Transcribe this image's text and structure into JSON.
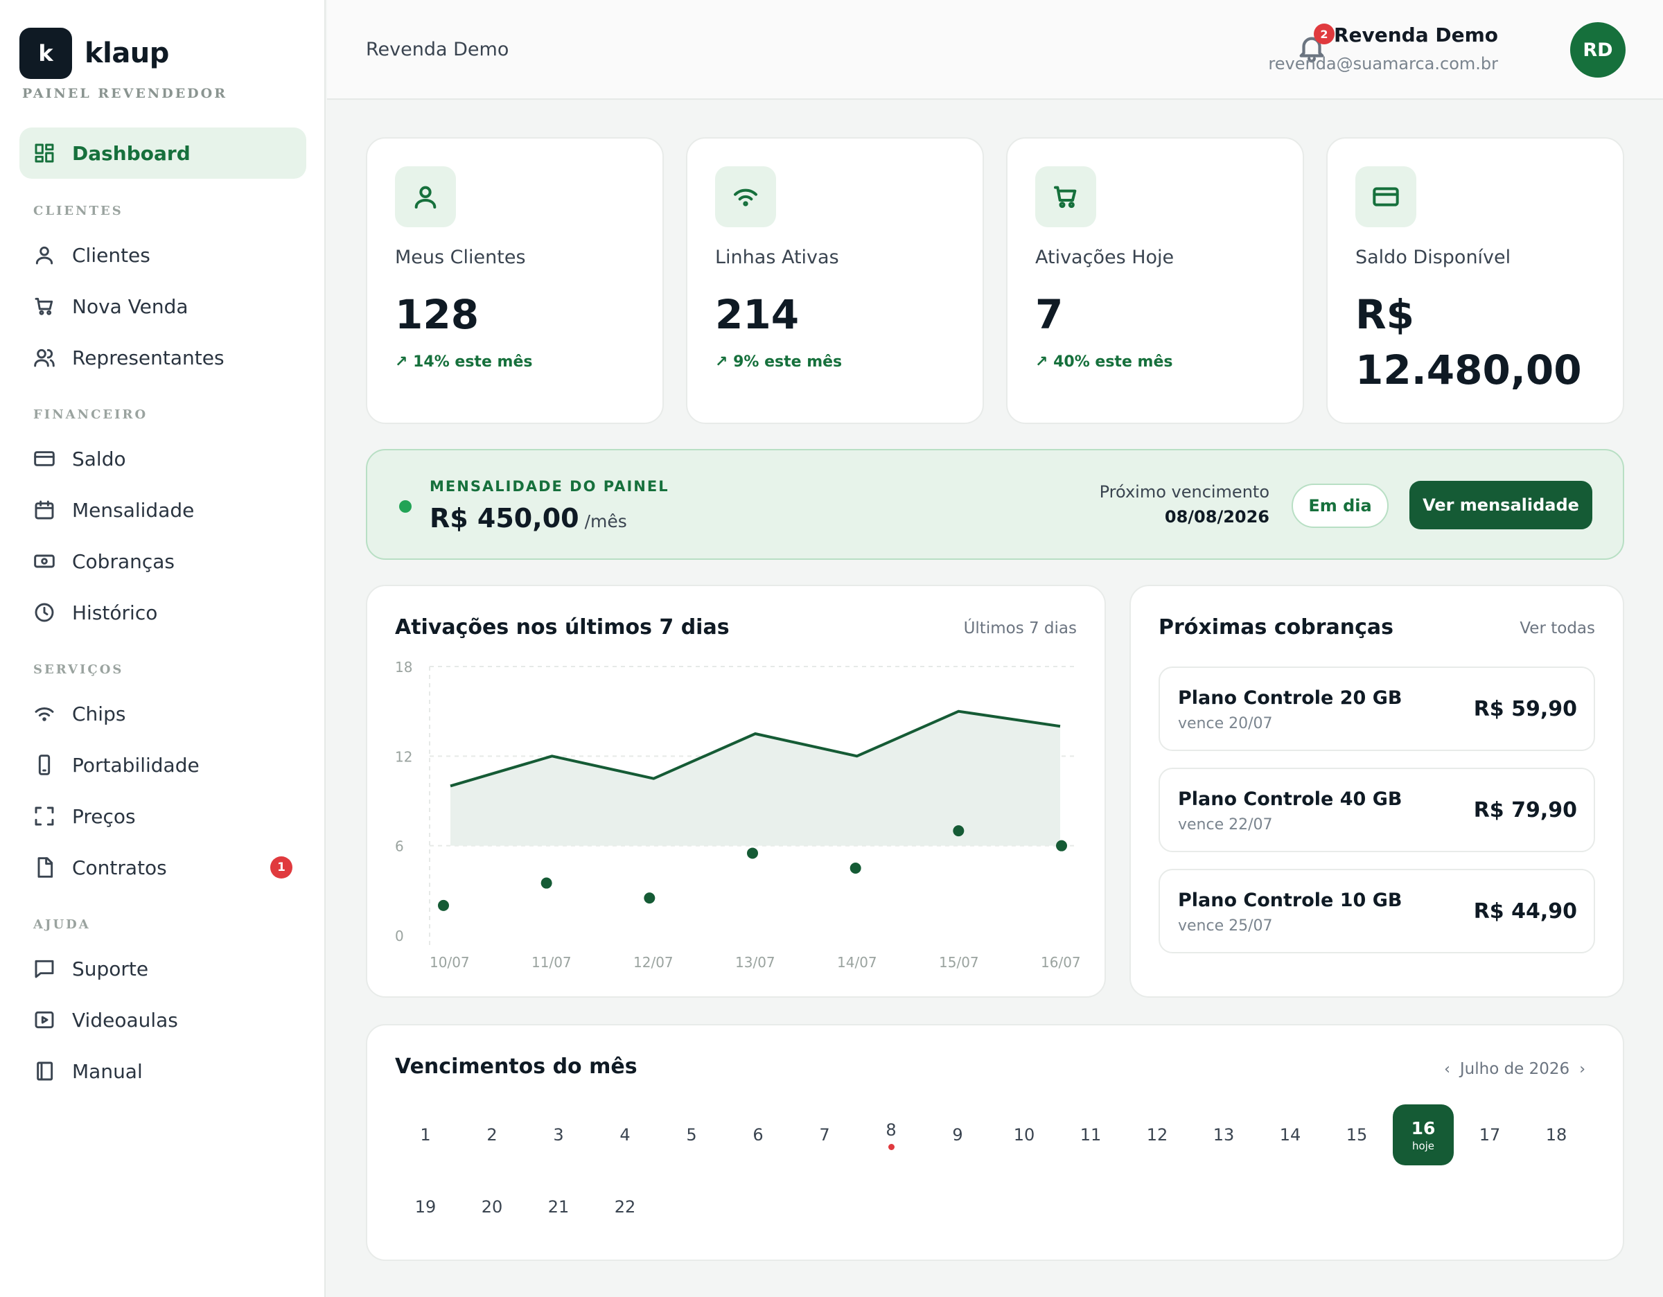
{
  "brand": {
    "logo_letter": "k",
    "name": "klaup",
    "subtitle": "PAINEL REVENDEDOR"
  },
  "sidebar": {
    "dashboard": "Dashboard",
    "sections": {
      "clientes": "CLIENTES",
      "financeiro": "FINANCEIRO",
      "servicos": "SERVIÇOS",
      "ajuda": "AJUDA"
    },
    "items": {
      "clientes": "Clientes",
      "nova_venda": "Nova Venda",
      "representantes": "Representantes",
      "saldo": "Saldo",
      "mensalidade": "Mensalidade",
      "cobrancas": "Cobranças",
      "historico": "Histórico",
      "chips": "Chips",
      "portabilidade": "Portabilidade",
      "precos": "Preços",
      "contratos": "Contratos",
      "contratos_badge": "1",
      "suporte": "Suporte",
      "videoaulas": "Videoaulas",
      "manual": "Manual"
    }
  },
  "topbar": {
    "title": "Revenda Demo",
    "notification_count": "2",
    "user_name": "Revenda Demo",
    "user_email": "revenda@suamarca.com.br",
    "avatar_initials": "RD"
  },
  "stats": [
    {
      "label": "Meus Clientes",
      "value": "128",
      "trend": "↗ 14% este mês",
      "icon": "user-icon"
    },
    {
      "label": "Linhas Ativas",
      "value": "214",
      "trend": "↗ 9% este mês",
      "icon": "signal-icon"
    },
    {
      "label": "Ativações Hoje",
      "value": "7",
      "trend": "↗ 40% este mês",
      "icon": "cart-icon"
    },
    {
      "label": "Saldo Disponível",
      "value": "R$ 12.480,00",
      "trend": "",
      "icon": "card-icon"
    }
  ],
  "mensalidade": {
    "label": "MENSALIDADE DO PAINEL",
    "price": "R$ 450,00",
    "per": "/mês",
    "next_label": "Próximo vencimento",
    "next_date": "08/08/2026",
    "status": "Em dia",
    "action": "Ver mensalidade"
  },
  "activations_chart": {
    "title": "Ativações nos últimos 7 dias",
    "range_label": "Últimos 7 dias"
  },
  "chart_data": {
    "type": "line",
    "title": "Ativações nos últimos 7 dias",
    "categories": [
      "10/07",
      "11/07",
      "12/07",
      "13/07",
      "14/07",
      "15/07",
      "16/07"
    ],
    "series": [
      {
        "values": [
          10,
          12,
          10.5,
          13.5,
          12,
          15,
          14
        ]
      },
      {
        "values": [
          2,
          3.5,
          2.5,
          5.5,
          4.5,
          7,
          6
        ]
      }
    ],
    "y_ticks": [
      "0",
      "6",
      "12",
      "18"
    ],
    "ylim": [
      0,
      18
    ],
    "grid": true,
    "colors": {
      "line": "#155b35",
      "area": "#e9f0ec",
      "points": "#155b35"
    }
  },
  "charges": {
    "title": "Próximas cobranças",
    "view_all": "Ver todas",
    "items": [
      {
        "name": "Plano Controle 20 GB",
        "due": "vence 20/07",
        "amount": "R$ 59,90"
      },
      {
        "name": "Plano Controle 40 GB",
        "due": "vence 22/07",
        "amount": "R$ 79,90"
      },
      {
        "name": "Plano Controle 10 GB",
        "due": "vence 25/07",
        "amount": "R$ 44,90"
      }
    ]
  },
  "calendar": {
    "title": "Vencimentos do mês",
    "month": "Julho de 2026",
    "prev": "‹",
    "next": "›",
    "days": [
      "1",
      "2",
      "3",
      "4",
      "5",
      "6",
      "7",
      "8",
      "9",
      "10",
      "11",
      "12",
      "13",
      "14",
      "15",
      "16",
      "17",
      "18",
      "19",
      "20",
      "21",
      "22"
    ],
    "today": "16",
    "today_label": "hoje",
    "marked": [
      "8"
    ]
  },
  "colors": {
    "accent": "#16703c",
    "accent_dark": "#155b35",
    "accent_light": "#e7f3ea",
    "danger": "#e03a3e"
  }
}
